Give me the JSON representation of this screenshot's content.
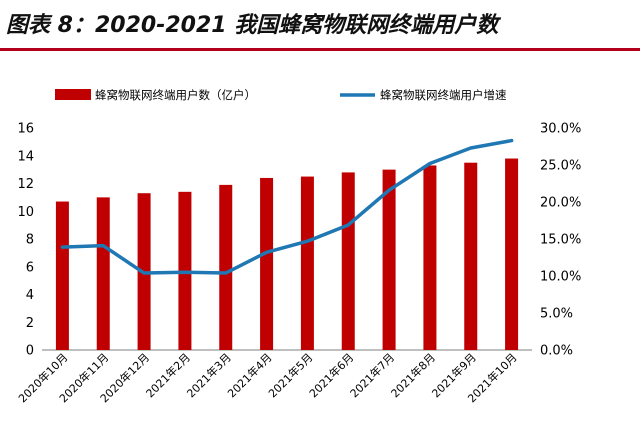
{
  "figure": {
    "title": "图表 8：2020-2021 我国蜂窝物联网终端用户数"
  },
  "chart_data": {
    "type": "bar",
    "title": "图表 8：2020-2021 我国蜂窝物联网终端用户数",
    "categories": [
      "2020年10月",
      "2020年11月",
      "2020年12月",
      "2021年2月",
      "2021年3月",
      "2021年4月",
      "2021年5月",
      "2021年6月",
      "2021年7月",
      "2021年8月",
      "2021年9月",
      "2021年10月"
    ],
    "series": [
      {
        "name": "蜂窝物联网终端用户数（亿户）",
        "type": "bar",
        "axis": "left",
        "color": "#c00000",
        "values": [
          10.7,
          11.0,
          11.3,
          11.4,
          11.9,
          12.4,
          12.5,
          12.8,
          13.0,
          13.3,
          13.5,
          13.8
        ]
      },
      {
        "name": "蜂窝物联网终端用户增速",
        "type": "line",
        "axis": "right",
        "color": "#1f77b4",
        "values": [
          13.9,
          14.1,
          10.4,
          10.5,
          10.4,
          13.2,
          14.7,
          16.9,
          21.6,
          25.2,
          27.3,
          28.3
        ]
      }
    ],
    "y_left": {
      "lim": [
        0,
        16
      ],
      "ticks": [
        "0",
        "2",
        "4",
        "6",
        "8",
        "10",
        "12",
        "14",
        "16"
      ]
    },
    "y_right": {
      "lim": [
        0,
        30
      ],
      "ticks": [
        "0.0%",
        "5.0%",
        "10.0%",
        "15.0%",
        "20.0%",
        "25.0%",
        "30.0%"
      ]
    },
    "grid": false,
    "legend": "top"
  }
}
